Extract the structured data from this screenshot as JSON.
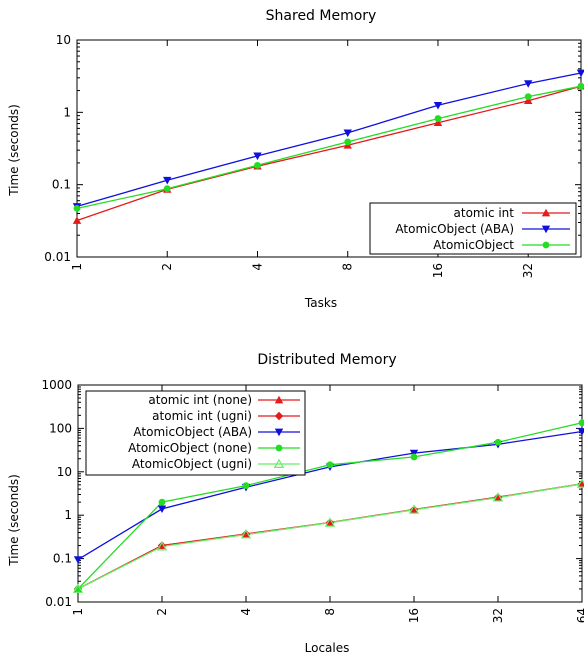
{
  "colors": {
    "red": "#e41a1c",
    "blue": "#1010dd",
    "green": "#22dd22",
    "lightgreen": "#66ee66"
  },
  "chart_data": [
    {
      "type": "line",
      "title": "Shared Memory",
      "xlabel": "Tasks",
      "ylabel": "Time (seconds)",
      "yscale": "log",
      "xscale": "log2",
      "ylim": [
        0.01,
        10
      ],
      "x_ticks": [
        "1",
        "2",
        "4",
        "8",
        "16",
        "32"
      ],
      "y_ticks": [
        "0.01",
        "0.1",
        "1",
        "10"
      ],
      "x": [
        1,
        2,
        4,
        8,
        16,
        32,
        48
      ],
      "grid": false,
      "legend_position": "bottom-right",
      "series": [
        {
          "name": "atomic int",
          "color": "#e41a1c",
          "marker": "triangle-up",
          "values": [
            0.032,
            0.086,
            0.18,
            0.35,
            0.72,
            1.45,
            2.3
          ]
        },
        {
          "name": "AtomicObject (ABA)",
          "color": "#1010dd",
          "marker": "triangle-down",
          "values": [
            0.05,
            0.115,
            0.25,
            0.52,
            1.25,
            2.5,
            3.5
          ]
        },
        {
          "name": "AtomicObject",
          "color": "#22dd22",
          "marker": "circle",
          "values": [
            0.047,
            0.088,
            0.185,
            0.39,
            0.82,
            1.65,
            2.3
          ]
        }
      ]
    },
    {
      "type": "line",
      "title": "Distributed Memory",
      "xlabel": "Locales",
      "ylabel": "Time (seconds)",
      "yscale": "log",
      "xscale": "log2",
      "ylim": [
        0.01,
        1000
      ],
      "x_ticks": [
        "1",
        "2",
        "4",
        "8",
        "16",
        "32",
        "64"
      ],
      "y_ticks": [
        "0.01",
        "0.1",
        "1",
        "10",
        "100",
        "1000"
      ],
      "x": [
        1,
        2,
        4,
        8,
        16,
        32,
        64
      ],
      "grid": false,
      "legend_position": "top-left",
      "series": [
        {
          "name": "atomic int (none)",
          "color": "#e41a1c",
          "marker": "triangle-up",
          "values": [
            0.02,
            0.2,
            0.36,
            0.68,
            1.35,
            2.6,
            5.3
          ]
        },
        {
          "name": "atomic int (ugni)",
          "color": "#e41a1c",
          "marker": "diamond",
          "values": [
            0.02,
            0.2,
            0.37,
            0.68,
            1.35,
            2.6,
            5.3
          ]
        },
        {
          "name": "AtomicObject (ABA)",
          "color": "#1010dd",
          "marker": "triangle-down",
          "values": [
            0.095,
            1.4,
            4.4,
            13,
            27,
            43,
            85
          ]
        },
        {
          "name": "AtomicObject (none)",
          "color": "#22dd22",
          "marker": "circle",
          "values": [
            0.02,
            2.0,
            4.8,
            14.5,
            22,
            48,
            135
          ]
        },
        {
          "name": "AtomicObject (ugni)",
          "color": "#66ee66",
          "marker": "triangle-up-open",
          "values": [
            0.02,
            0.19,
            0.36,
            0.67,
            1.33,
            2.55,
            5.3
          ]
        }
      ]
    }
  ]
}
